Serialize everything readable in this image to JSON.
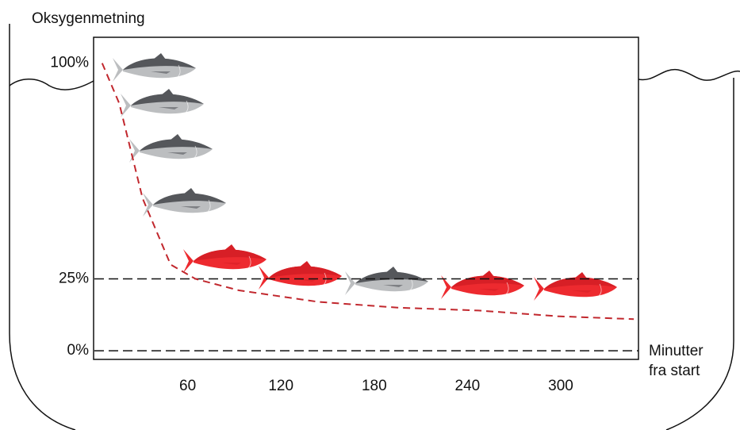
{
  "chart_data": {
    "type": "line",
    "y_label": "Oksygenmetning",
    "x_label_lines": [
      "Minutter",
      "fra start"
    ],
    "xlim": [
      0,
      350
    ],
    "ylim": [
      -3,
      109
    ],
    "xticks": [
      60,
      120,
      180,
      240,
      300
    ],
    "yticks": [
      {
        "value": 100,
        "label": "100%"
      },
      {
        "value": 25,
        "label": "25%"
      },
      {
        "value": 0,
        "label": "0%"
      }
    ],
    "dashed_lines": [
      25,
      0
    ],
    "series": [
      {
        "color": "#c1272d",
        "x": [
          5,
          16,
          31,
          49,
          65,
          93,
          144,
          195,
          247,
          298,
          347
        ],
        "values": [
          100,
          86,
          53,
          30,
          25,
          21,
          17,
          15,
          14,
          12,
          11
        ]
      }
    ]
  }
}
